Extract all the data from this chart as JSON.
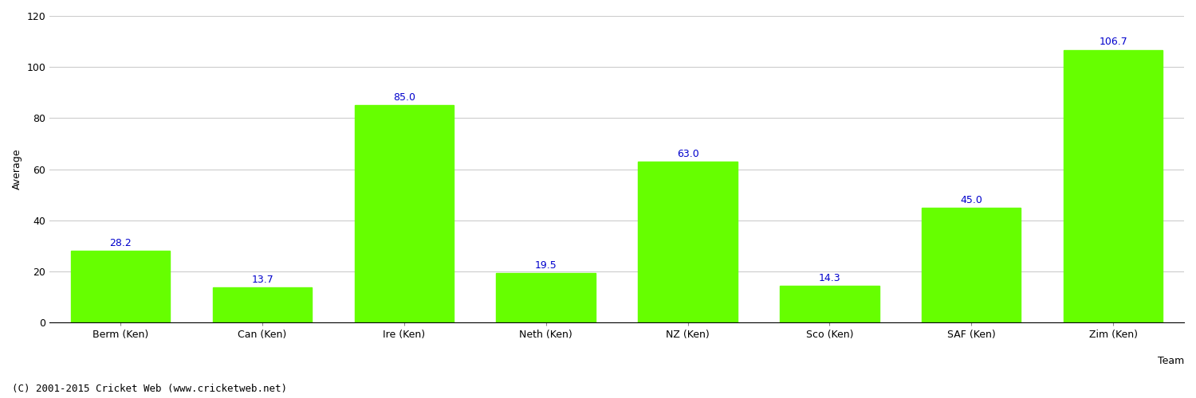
{
  "categories": [
    "Berm (Ken)",
    "Can (Ken)",
    "Ire (Ken)",
    "Neth (Ken)",
    "NZ (Ken)",
    "Sco (Ken)",
    "SAF (Ken)",
    "Zim (Ken)"
  ],
  "values": [
    28.2,
    13.7,
    85.0,
    19.5,
    63.0,
    14.3,
    45.0,
    106.7
  ],
  "bar_color": "#66ff00",
  "bar_edge_color": "#66ff00",
  "label_color": "#0000cc",
  "ylabel": "Average",
  "xlabel": "Team",
  "ylim": [
    0,
    120
  ],
  "yticks": [
    0,
    20,
    40,
    60,
    80,
    100,
    120
  ],
  "background_color": "#ffffff",
  "grid_color": "#cccccc",
  "label_fontsize": 9,
  "axis_fontsize": 9,
  "tick_fontsize": 9,
  "footer_text": "(C) 2001-2015 Cricket Web (www.cricketweb.net)",
  "footer_fontsize": 9
}
